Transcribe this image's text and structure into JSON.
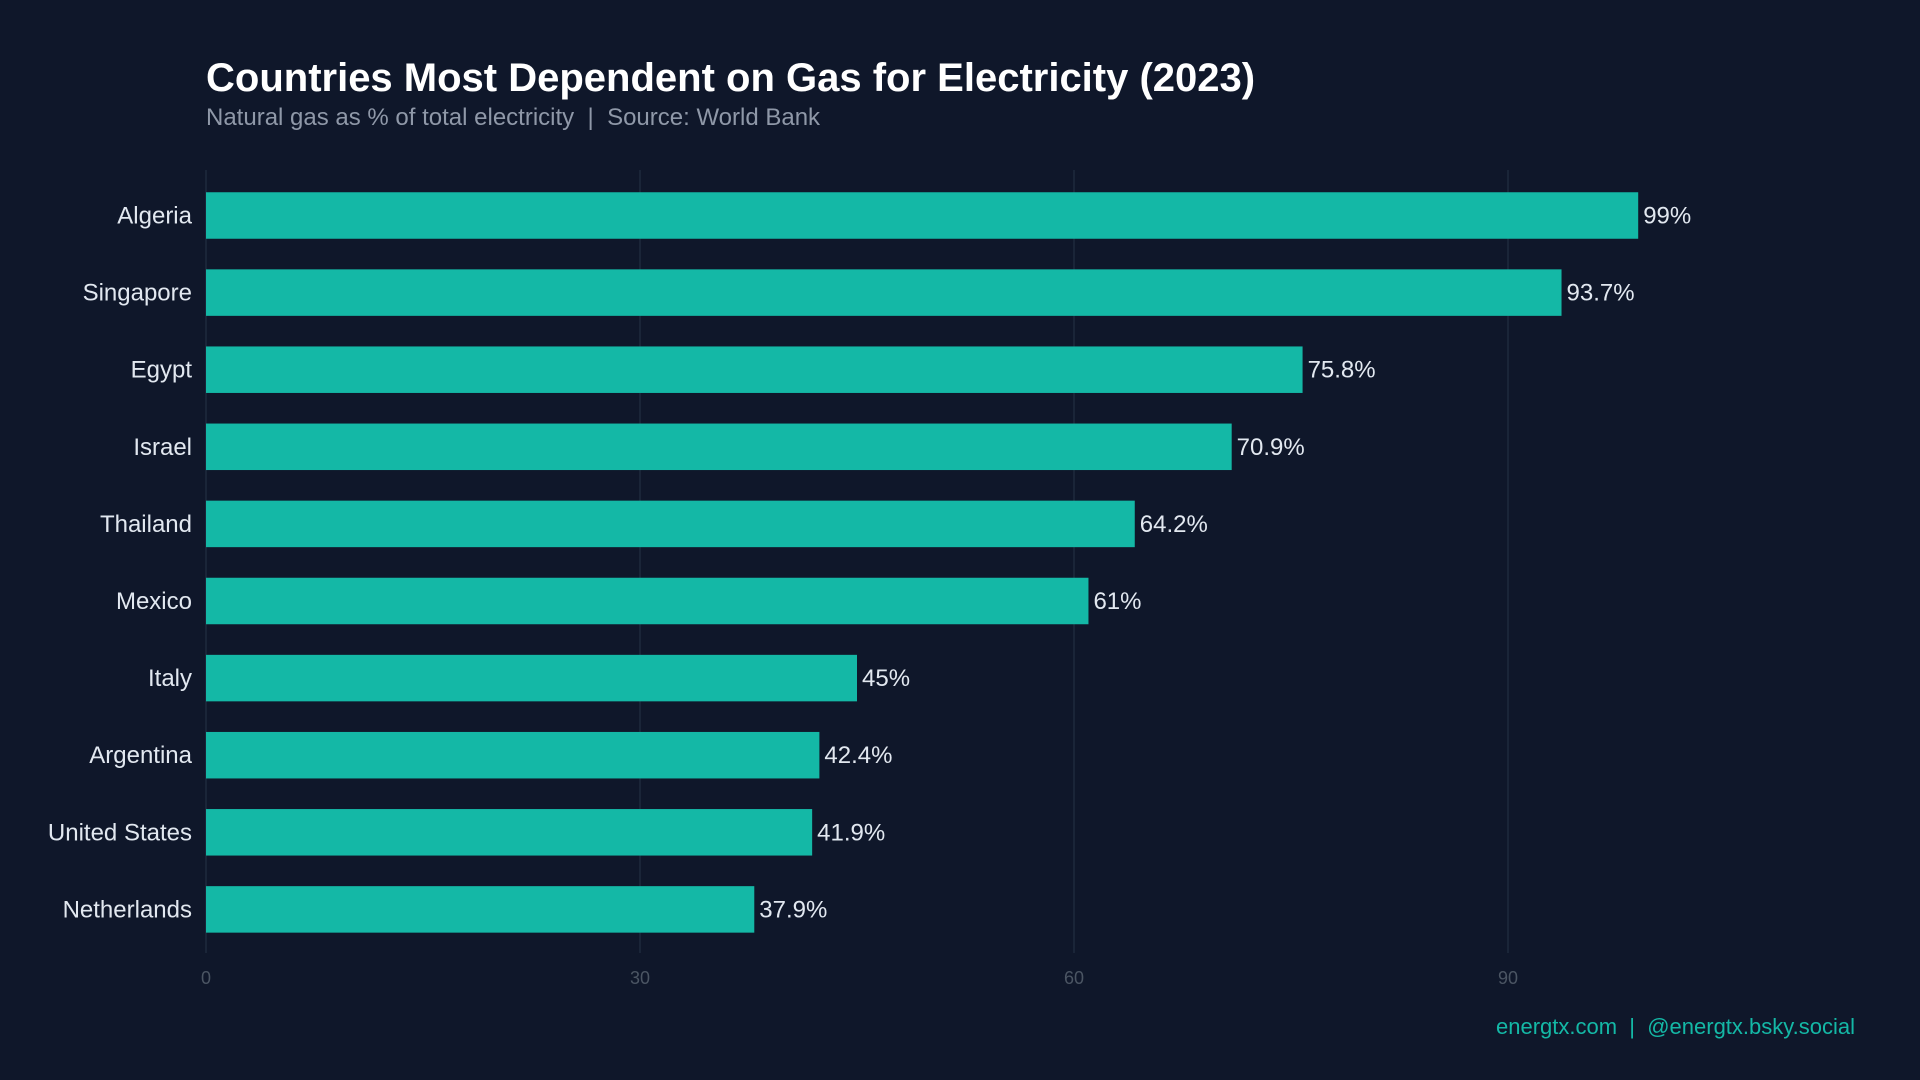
{
  "chart_data": {
    "type": "bar",
    "orientation": "horizontal",
    "title": "Countries Most Dependent on Gas for Electricity (2023)",
    "subtitle": "Natural gas as % of total electricity  |  Source: World Bank",
    "categories": [
      "Algeria",
      "Singapore",
      "Egypt",
      "Israel",
      "Thailand",
      "Mexico",
      "Italy",
      "Argentina",
      "United States",
      "Netherlands"
    ],
    "values": [
      99,
      93.7,
      75.8,
      70.9,
      64.2,
      61,
      45,
      42.4,
      41.9,
      37.9
    ],
    "data_labels": [
      "99%",
      "93.7%",
      "75.8%",
      "70.9%",
      "64.2%",
      "61%",
      "45%",
      "42.4%",
      "41.9%",
      "37.9%"
    ],
    "xticks": [
      "0",
      "30",
      "60",
      "90"
    ],
    "xlim": [
      0,
      120
    ],
    "grid": "vertical",
    "colors": {
      "background": "#0f172a",
      "bar": "#14b8a6",
      "grid": "#1f2a3c",
      "tick": "#4b5563",
      "label": "#e2e8f0"
    }
  },
  "footer": "energtx.com  |  @energtx.bsky.social"
}
